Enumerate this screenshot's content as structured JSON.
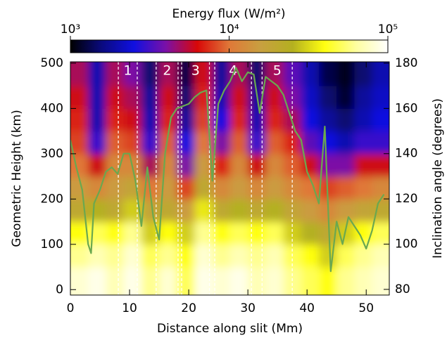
{
  "chart_data": {
    "type": "heatmap",
    "title": "Energy flux (W/m²)",
    "colorbar_lim": [
      1000,
      100000
    ],
    "colorbar_ticks": [
      {
        "value": 1000,
        "label": "10³"
      },
      {
        "value": 10000,
        "label": "10⁴"
      },
      {
        "value": 100000,
        "label": "10⁵"
      }
    ],
    "log_color": true,
    "colorscale": [
      "#000000",
      "#0a0a80",
      "#1010e0",
      "#7a10a8",
      "#d80808",
      "#e07838",
      "#c8a040",
      "#b4b020",
      "#ffff10",
      "#ffffa0",
      "#ffffff"
    ],
    "xlabel": "Distance along slit (Mm)",
    "ylabel": "Geometric Height (km)",
    "y2label": "Inclination angle (degrees)",
    "xlim": [
      0,
      53.9
    ],
    "ylim": [
      -12,
      503
    ],
    "y2lim": [
      77.5,
      180.6
    ],
    "xticks": [
      0,
      10,
      20,
      30,
      40,
      50
    ],
    "yticks": [
      0,
      100,
      200,
      300,
      400,
      500
    ],
    "y2ticks": [
      80,
      100,
      120,
      140,
      160,
      180
    ],
    "x": [
      1.5,
      4.5,
      7.5,
      10.5,
      13.5,
      16.5,
      19.5,
      22.5,
      25.5,
      28.5,
      31.5,
      34.5,
      37.5,
      40.5,
      43.5,
      46.5,
      49.5,
      52.5
    ],
    "y": [
      25,
      75,
      125,
      175,
      225,
      275,
      325,
      375,
      425,
      475
    ],
    "z": [
      [
        80000,
        90000,
        70000,
        90000,
        60000,
        80000,
        50000,
        90000,
        80000,
        90000,
        70000,
        80000,
        60000,
        50000,
        40000,
        60000,
        70000,
        80000
      ],
      [
        60000,
        70000,
        60000,
        80000,
        50000,
        60000,
        40000,
        80000,
        60000,
        70000,
        60000,
        70000,
        50000,
        40000,
        30000,
        50000,
        60000,
        70000
      ],
      [
        40000,
        50000,
        40000,
        60000,
        30000,
        40000,
        30000,
        60000,
        40000,
        50000,
        40000,
        50000,
        30000,
        25000,
        20000,
        30000,
        40000,
        50000
      ],
      [
        20000,
        25000,
        20000,
        30000,
        18000,
        20000,
        15000,
        35000,
        20000,
        25000,
        20000,
        25000,
        18000,
        15000,
        12000,
        15000,
        18000,
        20000
      ],
      [
        15000,
        12000,
        15000,
        18000,
        10000,
        15000,
        8000,
        20000,
        12000,
        15000,
        12000,
        15000,
        12000,
        10000,
        8000,
        9000,
        10000,
        12000
      ],
      [
        10000,
        6000,
        12000,
        12000,
        5000,
        12000,
        4000,
        15000,
        7000,
        12000,
        6000,
        12000,
        9000,
        6000,
        4000,
        4000,
        6000,
        6000
      ],
      [
        8000,
        3000,
        9000,
        8000,
        3000,
        9000,
        2500,
        10000,
        4000,
        9000,
        3000,
        9000,
        7000,
        3500,
        2500,
        2000,
        3000,
        3000
      ],
      [
        7000,
        2000,
        7000,
        6000,
        2000,
        7000,
        1800,
        8000,
        2500,
        7000,
        2000,
        7000,
        5000,
        2500,
        1800,
        1500,
        2000,
        2500
      ],
      [
        6000,
        2000,
        6000,
        5000,
        1800,
        6000,
        1500,
        7000,
        2000,
        6000,
        1800,
        6000,
        4000,
        2200,
        1500,
        1200,
        1800,
        2200
      ],
      [
        5000,
        2000,
        5000,
        4000,
        1500,
        5000,
        1300,
        6000,
        1800,
        5000,
        1500,
        5000,
        3500,
        2000,
        1300,
        1100,
        1500,
        2000
      ]
    ],
    "line": {
      "color": "#6aa84f",
      "axis": "y2",
      "x": [
        0,
        1,
        2,
        3,
        3.5,
        4,
        5,
        6,
        7,
        8,
        9,
        10,
        11,
        12,
        13,
        14,
        15,
        16,
        17,
        18,
        19,
        20,
        21,
        22,
        23,
        24,
        25,
        26,
        27,
        28,
        29,
        30,
        31,
        32,
        33,
        34,
        35,
        36,
        37,
        38,
        39,
        40,
        41,
        42,
        43,
        44,
        45,
        46,
        47,
        48,
        49,
        50,
        51,
        52,
        53
      ],
      "values": [
        146,
        134,
        124,
        100,
        96,
        118,
        124,
        132,
        134,
        131,
        140,
        140,
        128,
        108,
        134,
        112,
        102,
        140,
        156,
        160,
        161,
        162,
        165,
        167,
        168,
        128,
        162,
        168,
        172,
        178,
        172,
        176,
        175,
        158,
        174,
        172,
        170,
        166,
        158,
        150,
        146,
        132,
        126,
        118,
        152,
        88,
        110,
        100,
        112,
        108,
        104,
        98,
        106,
        118,
        122
      ]
    },
    "regions": [
      {
        "label": "1",
        "x": [
          8.1,
          11.3
        ]
      },
      {
        "label": "2",
        "x": [
          14.5,
          18.2
        ]
      },
      {
        "label": "3",
        "x": [
          18.8,
          23.5
        ]
      },
      {
        "label": "4",
        "x": [
          24.4,
          30.6
        ]
      },
      {
        "label": "5",
        "x": [
          32.4,
          37.5
        ]
      }
    ]
  }
}
